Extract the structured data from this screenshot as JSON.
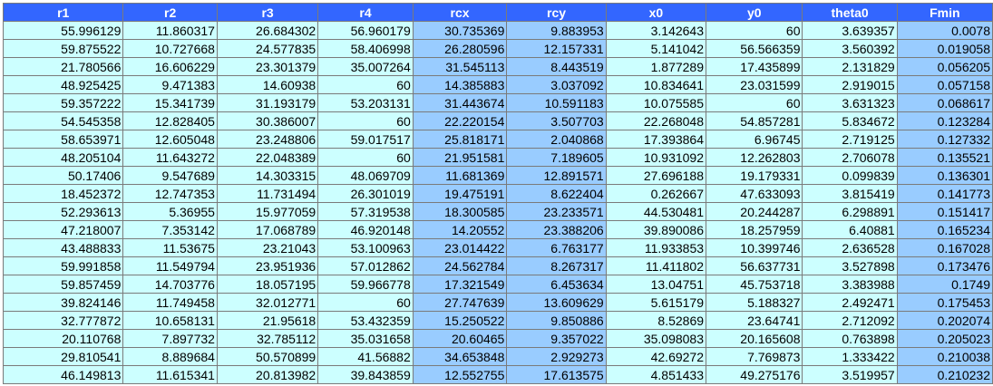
{
  "table": {
    "headers": [
      "r1",
      "r2",
      "r3",
      "r4",
      "rcx",
      "rcy",
      "x0",
      "y0",
      "theta0",
      "Fmin"
    ],
    "highlight_columns": [
      4,
      5,
      9
    ],
    "colors": {
      "header_bg": "#3366ff",
      "header_text": "#ffffff",
      "cell_bg": "#ccffff",
      "highlight_bg": "#99ccff",
      "grid": "#7a7a7a"
    },
    "rows": [
      [
        "55.996129",
        "11.860317",
        "26.684302",
        "56.960179",
        "30.735369",
        "9.883953",
        "3.142643",
        "60",
        "3.639357",
        "0.0078"
      ],
      [
        "59.875522",
        "10.727668",
        "24.577835",
        "58.406998",
        "26.280596",
        "12.157331",
        "5.141042",
        "56.566359",
        "3.560392",
        "0.019058"
      ],
      [
        "21.780566",
        "16.606229",
        "23.301379",
        "35.007264",
        "31.545113",
        "8.443519",
        "1.877289",
        "17.435899",
        "2.131829",
        "0.056205"
      ],
      [
        "48.925425",
        "9.471383",
        "14.60938",
        "60",
        "14.385883",
        "3.037092",
        "10.834641",
        "23.031599",
        "2.919015",
        "0.057158"
      ],
      [
        "59.357222",
        "15.341739",
        "31.193179",
        "53.203131",
        "31.443674",
        "10.591183",
        "10.075585",
        "60",
        "3.631323",
        "0.068617"
      ],
      [
        "54.545358",
        "12.828405",
        "30.386007",
        "60",
        "22.220154",
        "3.507703",
        "22.268048",
        "54.857281",
        "5.834672",
        "0.123284"
      ],
      [
        "58.653971",
        "12.605048",
        "23.248806",
        "59.017517",
        "25.818171",
        "2.040868",
        "17.393864",
        "6.96745",
        "2.719125",
        "0.127332"
      ],
      [
        "48.205104",
        "11.643272",
        "22.048389",
        "60",
        "21.951581",
        "7.189605",
        "10.931092",
        "12.262803",
        "2.706078",
        "0.135521"
      ],
      [
        "50.17406",
        "9.547689",
        "14.303315",
        "48.069709",
        "11.681369",
        "12.891571",
        "27.696188",
        "19.179331",
        "0.099839",
        "0.136301"
      ],
      [
        "18.452372",
        "12.747353",
        "11.731494",
        "26.301019",
        "19.475191",
        "8.622404",
        "0.262667",
        "47.633093",
        "3.815419",
        "0.141773"
      ],
      [
        "52.293613",
        "5.36955",
        "15.977059",
        "57.319538",
        "18.300585",
        "23.233571",
        "44.530481",
        "20.244287",
        "6.298891",
        "0.151417"
      ],
      [
        "47.218007",
        "7.353142",
        "17.068789",
        "46.920148",
        "14.20552",
        "23.388206",
        "39.890086",
        "18.257959",
        "6.40881",
        "0.165234"
      ],
      [
        "43.488833",
        "11.53675",
        "23.21043",
        "53.100963",
        "23.014422",
        "6.763177",
        "11.933853",
        "10.399746",
        "2.636528",
        "0.167028"
      ],
      [
        "59.991858",
        "11.549794",
        "23.951936",
        "57.012862",
        "24.562784",
        "8.267317",
        "11.411802",
        "56.637731",
        "3.527898",
        "0.173476"
      ],
      [
        "59.857459",
        "14.703776",
        "18.057195",
        "59.966778",
        "17.321549",
        "6.453634",
        "13.04751",
        "45.753718",
        "3.383988",
        "0.1749"
      ],
      [
        "39.824146",
        "11.749458",
        "32.012771",
        "60",
        "27.747639",
        "13.609629",
        "5.615179",
        "5.188327",
        "2.492471",
        "0.175453"
      ],
      [
        "32.777872",
        "10.658131",
        "21.95618",
        "53.432359",
        "15.250522",
        "9.850886",
        "8.52869",
        "23.64741",
        "2.712092",
        "0.202074"
      ],
      [
        "20.110768",
        "7.897732",
        "32.785112",
        "35.031658",
        "20.60465",
        "9.357022",
        "35.098083",
        "20.165608",
        "0.763898",
        "0.205023"
      ],
      [
        "29.810541",
        "8.889684",
        "50.570899",
        "41.56882",
        "34.653848",
        "2.929273",
        "42.69272",
        "7.769873",
        "1.333422",
        "0.210038"
      ],
      [
        "46.149813",
        "11.615341",
        "20.813982",
        "39.843859",
        "12.552755",
        "17.613575",
        "4.851433",
        "49.275176",
        "3.519957",
        "0.210232"
      ]
    ]
  }
}
